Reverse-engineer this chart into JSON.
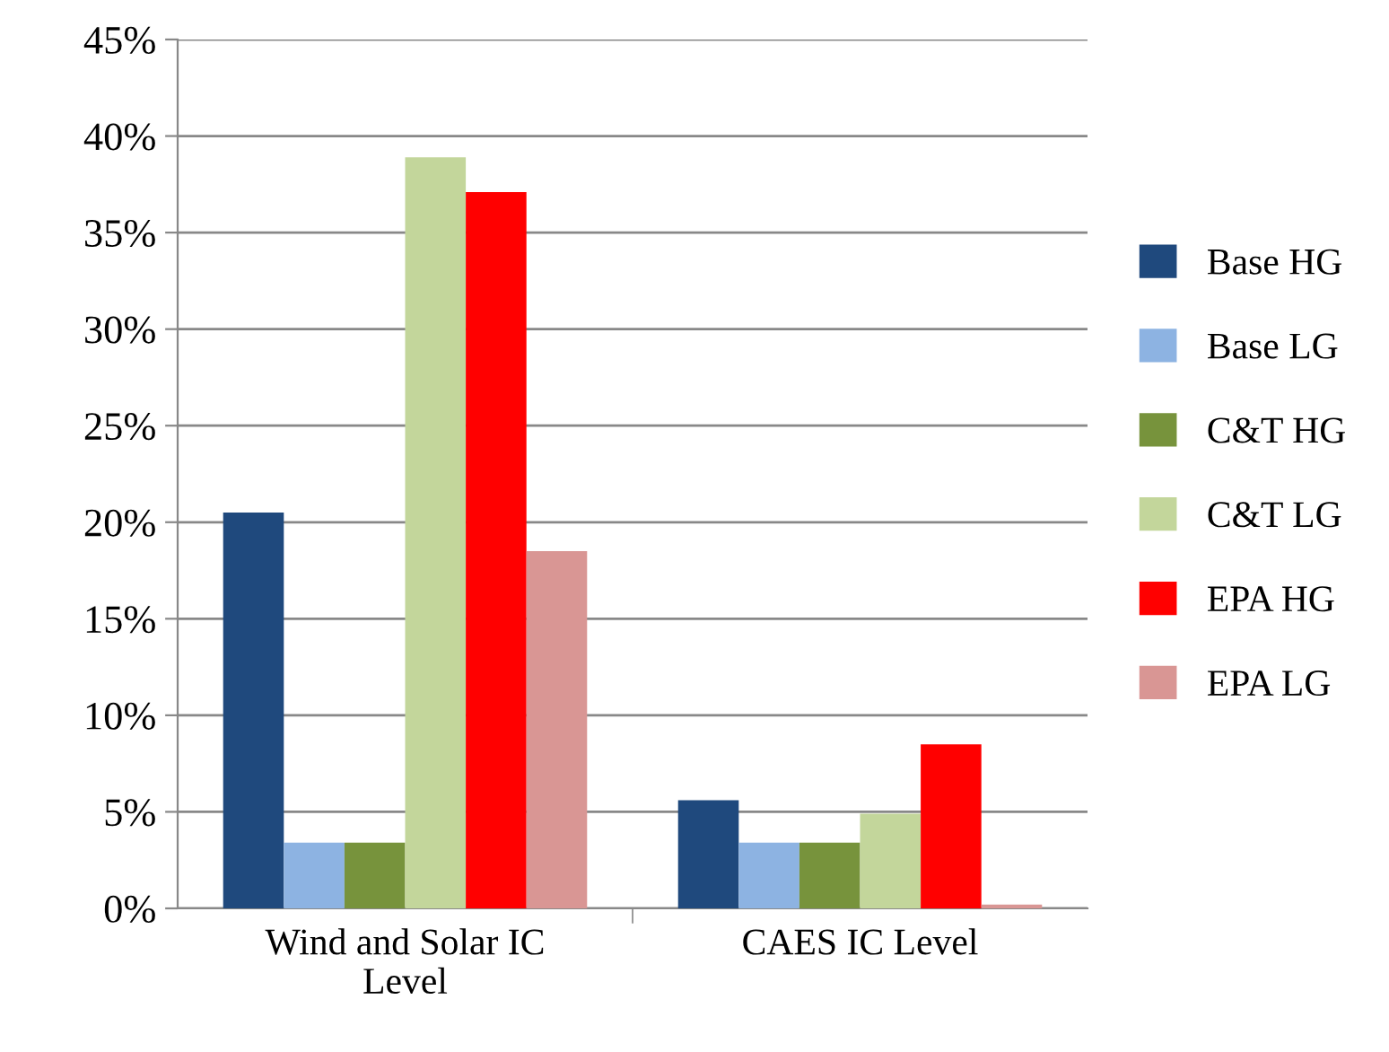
{
  "chart_data": {
    "type": "bar",
    "categories": [
      "Wind and Solar IC\nLevel",
      "CAES IC Level"
    ],
    "series": [
      {
        "name": "Base HG",
        "color": "#1f497d",
        "values": [
          20.5,
          5.6
        ]
      },
      {
        "name": "Base LG",
        "color": "#8db3e2",
        "values": [
          3.4,
          3.4
        ]
      },
      {
        "name": "C&T HG",
        "color": "#77933c",
        "values": [
          3.4,
          3.4
        ]
      },
      {
        "name": "C&T LG",
        "color": "#c3d69b",
        "values": [
          38.9,
          4.9
        ]
      },
      {
        "name": "EPA HG",
        "color": "#ff0000",
        "values": [
          37.1,
          8.5
        ]
      },
      {
        "name": "EPA LG",
        "color": "#d99694",
        "values": [
          18.5,
          0.2
        ]
      }
    ],
    "ylim": [
      0,
      45
    ],
    "yticks": [
      {
        "value": 0,
        "label": "0%"
      },
      {
        "value": 5,
        "label": "5%"
      },
      {
        "value": 10,
        "label": "10%"
      },
      {
        "value": 15,
        "label": "15%"
      },
      {
        "value": 20,
        "label": "20%"
      },
      {
        "value": 25,
        "label": "25%"
      },
      {
        "value": 30,
        "label": "30%"
      },
      {
        "value": 35,
        "label": "35%"
      },
      {
        "value": 40,
        "label": "40%"
      },
      {
        "value": 45,
        "label": "45%"
      }
    ],
    "grid": "y",
    "legend": "right"
  }
}
